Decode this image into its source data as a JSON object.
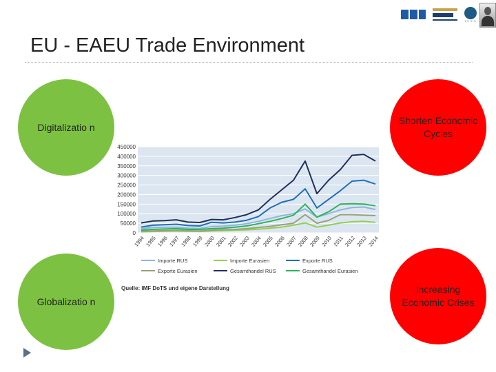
{
  "title": "EU - EAEU Trade Environment",
  "circles": {
    "digitalization": "Digitalizatio n",
    "globalization": "Globalizatio n",
    "shorten": "Shorten Economic Cycles",
    "crises": "Increasing Economic Crises"
  },
  "source": "Quelle: IMF DoTS und eigene Darstellung",
  "colors": {
    "green": "#7dc142",
    "red": "#ff0000"
  },
  "chart_data": {
    "type": "line",
    "x": [
      "1994",
      "1995",
      "1996",
      "1997",
      "1998",
      "1999",
      "2000",
      "2001",
      "2002",
      "2003",
      "2004",
      "2005",
      "2006",
      "2007",
      "2008",
      "2009",
      "2010",
      "2011",
      "2012",
      "2013",
      "2014"
    ],
    "ylim": [
      0,
      450000
    ],
    "yticks": [
      "450000",
      "400000",
      "350000",
      "300000",
      "250000",
      "200000",
      "150000",
      "100000",
      "50000",
      "0"
    ],
    "grid": true,
    "legend_position": "bottom",
    "series": [
      {
        "name": "Importe RUS",
        "color": "#8fb5dc",
        "values": [
          22000,
          28000,
          29000,
          30000,
          24000,
          23000,
          33000,
          35000,
          40000,
          48000,
          60000,
          75000,
          90000,
          100000,
          125000,
          82000,
          100000,
          120000,
          132000,
          135000,
          122000
        ]
      },
      {
        "name": "Importe Eurasien",
        "color": "#92d050",
        "values": [
          5000,
          7000,
          8000,
          9000,
          8000,
          7000,
          10000,
          12000,
          14000,
          16000,
          19000,
          24000,
          30000,
          40000,
          52000,
          30000,
          40000,
          52000,
          58000,
          60000,
          55000
        ]
      },
      {
        "name": "Exporte RUS",
        "color": "#1f6fb6",
        "values": [
          30000,
          40000,
          42000,
          45000,
          38000,
          36000,
          55000,
          52000,
          56000,
          66000,
          85000,
          130000,
          160000,
          175000,
          230000,
          130000,
          175000,
          220000,
          270000,
          275000,
          255000
        ]
      },
      {
        "name": "Exporte Eurasien",
        "color": "#9aa07a",
        "values": [
          8000,
          10000,
          12000,
          13000,
          11000,
          10000,
          14000,
          16000,
          18000,
          22000,
          28000,
          34000,
          42000,
          50000,
          95000,
          50000,
          65000,
          95000,
          95000,
          92000,
          90000
        ]
      },
      {
        "name": "Gesamthandel RUS",
        "color": "#1f2f5c",
        "values": [
          52000,
          62000,
          64000,
          68000,
          56000,
          54000,
          70000,
          68000,
          80000,
          95000,
          120000,
          175000,
          225000,
          275000,
          375000,
          205000,
          275000,
          330000,
          405000,
          410000,
          375000
        ]
      },
      {
        "name": "Gesamthandel Eurasien",
        "color": "#2fb35a",
        "values": [
          14000,
          18000,
          20000,
          22000,
          18000,
          18000,
          22000,
          24000,
          30000,
          36000,
          48000,
          60000,
          75000,
          92000,
          150000,
          82000,
          110000,
          150000,
          152000,
          150000,
          142000
        ]
      }
    ]
  }
}
